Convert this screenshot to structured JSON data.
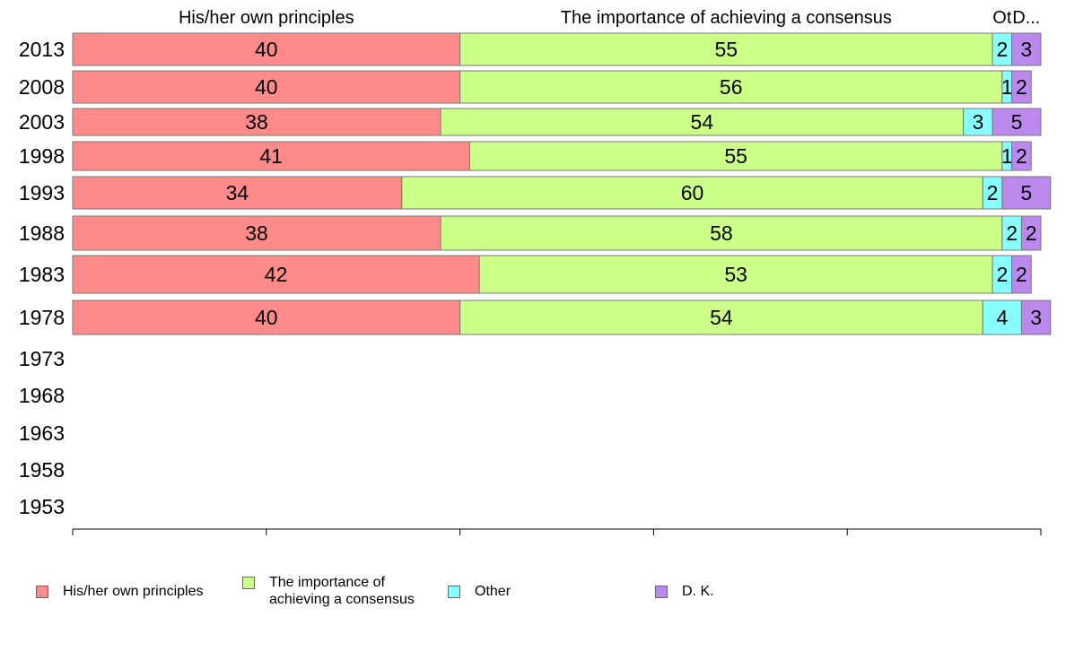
{
  "chart_data": {
    "type": "bar",
    "orientation": "horizontal",
    "stacked": true,
    "categories": [
      "2013",
      "2008",
      "2003",
      "1998",
      "1993",
      "1988",
      "1983",
      "1978",
      "1973",
      "1968",
      "1963",
      "1958",
      "1953"
    ],
    "series": [
      {
        "name": "His/her own principles",
        "header": "His/her own principles",
        "color": "#ff8a8a",
        "values": [
          40,
          40,
          38,
          41,
          34,
          38,
          42,
          40,
          null,
          null,
          null,
          null,
          null
        ]
      },
      {
        "name": "The importance of\nachieving a consensus",
        "header": "The importance of achieving a consensus",
        "color": "#ccff88",
        "values": [
          55,
          56,
          54,
          55,
          60,
          58,
          53,
          54,
          null,
          null,
          null,
          null,
          null
        ]
      },
      {
        "name": "Other",
        "header": "Ot",
        "color": "#88ffff",
        "values": [
          2,
          1,
          3,
          1,
          2,
          2,
          2,
          4,
          null,
          null,
          null,
          null,
          null
        ]
      },
      {
        "name": "D. K.",
        "header": "D...",
        "color": "#bb88ee",
        "values": [
          3,
          2,
          5,
          2,
          5,
          2,
          2,
          3,
          null,
          null,
          null,
          null,
          null
        ]
      }
    ],
    "xlim": [
      0,
      100
    ],
    "xticks": [
      0,
      20,
      40,
      60,
      80,
      100
    ],
    "grid": false,
    "legend": "bottom"
  }
}
